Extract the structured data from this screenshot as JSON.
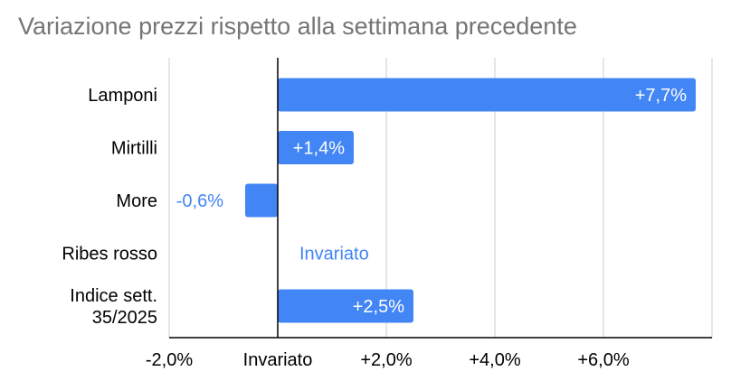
{
  "chart_data": {
    "type": "bar",
    "orientation": "horizontal",
    "title": "Variazione prezzi rispetto alla settimana precedente",
    "xlabel": "",
    "ylabel": "",
    "categories": [
      {
        "label_lines": [
          "Lamponi"
        ]
      },
      {
        "label_lines": [
          "Mirtilli"
        ]
      },
      {
        "label_lines": [
          "More"
        ]
      },
      {
        "label_lines": [
          "Ribes rosso"
        ]
      },
      {
        "label_lines": [
          "Indice sett.",
          "35/2025"
        ]
      }
    ],
    "values": [
      7.7,
      1.4,
      -0.6,
      0,
      2.5
    ],
    "data_labels": [
      "+7,7%",
      "+1,4%",
      "-0,6%",
      "Invariato",
      "+2,5%"
    ],
    "xlim": [
      -2,
      8
    ],
    "x_ticks": [
      {
        "value": -2,
        "label": "-2,0%"
      },
      {
        "value": 0,
        "label": "Invariato"
      },
      {
        "value": 2,
        "label": "+2,0%"
      },
      {
        "value": 4,
        "label": "+4,0%"
      },
      {
        "value": 6,
        "label": "+6,0%"
      }
    ],
    "grid": true,
    "legend": "none",
    "colors": {
      "bar": "#4285f4",
      "label_inside": "#ffffff",
      "label_outside": "#4285f4",
      "grid": "#cccccc",
      "baseline": "#000000",
      "title": "#757575",
      "text": "#000000"
    }
  }
}
